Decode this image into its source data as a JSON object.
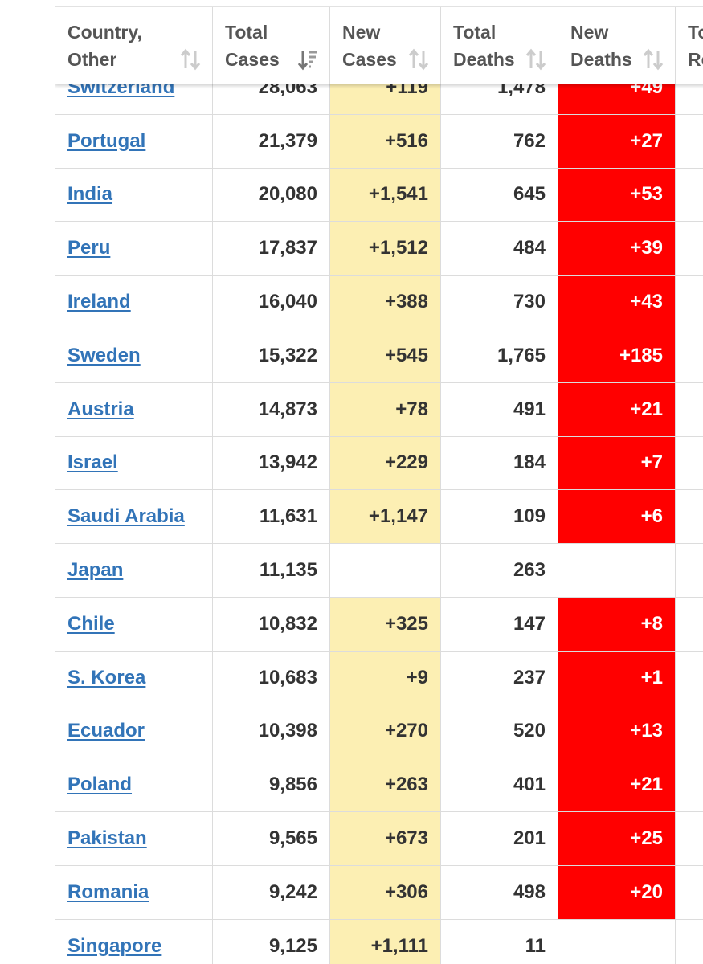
{
  "header": {
    "country": [
      "Country,",
      "Other"
    ],
    "total_cases": [
      "Total",
      "Cases"
    ],
    "new_cases": [
      "New",
      "Cases"
    ],
    "total_deaths": [
      "Total",
      "Deaths"
    ],
    "new_deaths": [
      "New",
      "Deaths"
    ],
    "next": [
      "To",
      "Re"
    ]
  },
  "rows": [
    {
      "country": "Switzerland",
      "total_cases": "28,063",
      "new_cases": "+119",
      "total_deaths": "1,478",
      "new_deaths": "+49"
    },
    {
      "country": "Portugal",
      "total_cases": "21,379",
      "new_cases": "+516",
      "total_deaths": "762",
      "new_deaths": "+27"
    },
    {
      "country": "India",
      "total_cases": "20,080",
      "new_cases": "+1,541",
      "total_deaths": "645",
      "new_deaths": "+53"
    },
    {
      "country": "Peru",
      "total_cases": "17,837",
      "new_cases": "+1,512",
      "total_deaths": "484",
      "new_deaths": "+39"
    },
    {
      "country": "Ireland",
      "total_cases": "16,040",
      "new_cases": "+388",
      "total_deaths": "730",
      "new_deaths": "+43"
    },
    {
      "country": "Sweden",
      "total_cases": "15,322",
      "new_cases": "+545",
      "total_deaths": "1,765",
      "new_deaths": "+185"
    },
    {
      "country": "Austria",
      "total_cases": "14,873",
      "new_cases": "+78",
      "total_deaths": "491",
      "new_deaths": "+21"
    },
    {
      "country": "Israel",
      "total_cases": "13,942",
      "new_cases": "+229",
      "total_deaths": "184",
      "new_deaths": "+7"
    },
    {
      "country": "Saudi Arabia",
      "total_cases": "11,631",
      "new_cases": "+1,147",
      "total_deaths": "109",
      "new_deaths": "+6"
    },
    {
      "country": "Japan",
      "total_cases": "11,135",
      "new_cases": "",
      "total_deaths": "263",
      "new_deaths": ""
    },
    {
      "country": "Chile",
      "total_cases": "10,832",
      "new_cases": "+325",
      "total_deaths": "147",
      "new_deaths": "+8"
    },
    {
      "country": "S. Korea",
      "total_cases": "10,683",
      "new_cases": "+9",
      "total_deaths": "237",
      "new_deaths": "+1"
    },
    {
      "country": "Ecuador",
      "total_cases": "10,398",
      "new_cases": "+270",
      "total_deaths": "520",
      "new_deaths": "+13"
    },
    {
      "country": "Poland",
      "total_cases": "9,856",
      "new_cases": "+263",
      "total_deaths": "401",
      "new_deaths": "+21"
    },
    {
      "country": "Pakistan",
      "total_cases": "9,565",
      "new_cases": "+673",
      "total_deaths": "201",
      "new_deaths": "+25"
    },
    {
      "country": "Romania",
      "total_cases": "9,242",
      "new_cases": "+306",
      "total_deaths": "498",
      "new_deaths": "+20"
    },
    {
      "country": "Singapore",
      "total_cases": "9,125",
      "new_cases": "+1,111",
      "total_deaths": "11",
      "new_deaths": ""
    }
  ],
  "colors": {
    "link": "#3274b8",
    "new_cases_bg": "#fcefb3",
    "new_deaths_bg": "#ff0000",
    "new_deaths_text": "#ffffff"
  },
  "icons": {
    "sort_unsorted": "sort-arrows-icon",
    "sort_active": "sort-descending-icon"
  }
}
